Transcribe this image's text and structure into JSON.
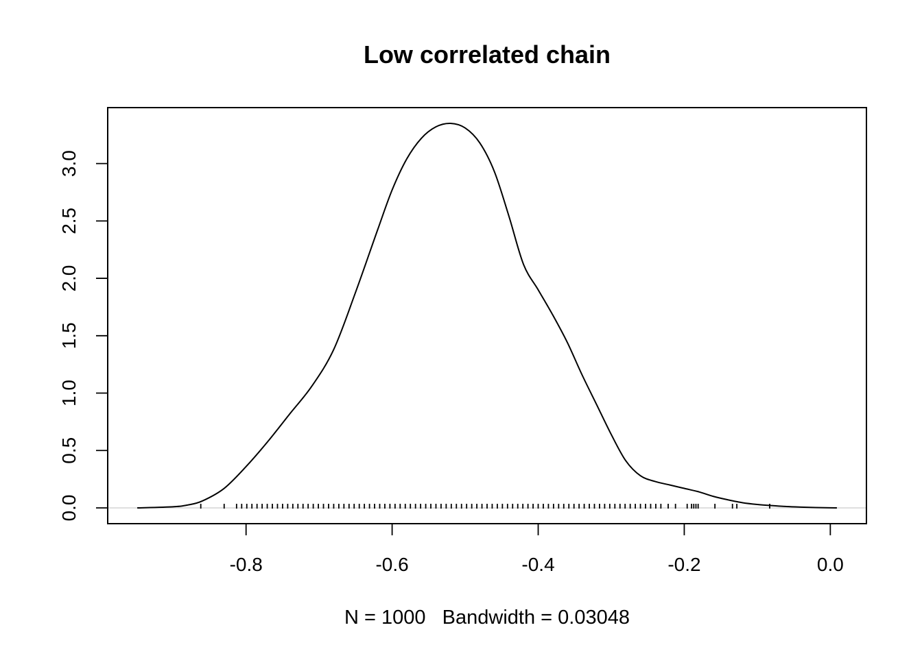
{
  "chart_data": {
    "type": "line",
    "title": "Low correlated chain",
    "xlabel": "N = 1000   Bandwidth = 0.03048",
    "ylabel": "",
    "xlim": [
      -0.95,
      0.01
    ],
    "ylim": [
      0,
      3.35
    ],
    "grid": false,
    "x_ticks": [
      {
        "value": -0.8,
        "label": "-0.8"
      },
      {
        "value": -0.6,
        "label": "-0.6"
      },
      {
        "value": -0.4,
        "label": "-0.4"
      },
      {
        "value": -0.2,
        "label": "-0.2"
      },
      {
        "value": 0.0,
        "label": "0.0"
      }
    ],
    "y_ticks": [
      {
        "value": 0.0,
        "label": "0.0"
      },
      {
        "value": 0.5,
        "label": "0.5"
      },
      {
        "value": 1.0,
        "label": "1.0"
      },
      {
        "value": 1.5,
        "label": "1.5"
      },
      {
        "value": 2.0,
        "label": "2.0"
      },
      {
        "value": 2.5,
        "label": "2.5"
      },
      {
        "value": 3.0,
        "label": "3.0"
      }
    ],
    "series": [
      {
        "x": [
          -0.949,
          -0.9,
          -0.88,
          -0.86,
          -0.83,
          -0.8,
          -0.77,
          -0.74,
          -0.71,
          -0.68,
          -0.65,
          -0.62,
          -0.6,
          -0.58,
          -0.56,
          -0.54,
          -0.52,
          -0.5,
          -0.48,
          -0.46,
          -0.44,
          -0.42,
          -0.4,
          -0.38,
          -0.36,
          -0.34,
          -0.32,
          -0.3,
          -0.28,
          -0.26,
          -0.24,
          -0.22,
          -0.2,
          -0.18,
          -0.16,
          -0.14,
          -0.12,
          -0.1,
          -0.08,
          -0.06,
          -0.04,
          -0.02,
          0.0,
          0.009
        ],
        "y": [
          0.0,
          0.01,
          0.025,
          0.06,
          0.17,
          0.36,
          0.58,
          0.82,
          1.06,
          1.38,
          1.88,
          2.42,
          2.77,
          3.04,
          3.22,
          3.32,
          3.35,
          3.31,
          3.18,
          2.93,
          2.54,
          2.12,
          1.9,
          1.68,
          1.44,
          1.16,
          0.9,
          0.64,
          0.41,
          0.28,
          0.23,
          0.2,
          0.17,
          0.14,
          0.1,
          0.07,
          0.045,
          0.03,
          0.02,
          0.012,
          0.007,
          0.003,
          0.001,
          0.0
        ]
      }
    ],
    "rug": [
      -0.862,
      -0.83,
      -0.813,
      -0.806,
      -0.799,
      -0.792,
      -0.785,
      -0.778,
      -0.771,
      -0.764,
      -0.757,
      -0.75,
      -0.743,
      -0.736,
      -0.729,
      -0.722,
      -0.715,
      -0.708,
      -0.701,
      -0.694,
      -0.687,
      -0.68,
      -0.673,
      -0.666,
      -0.659,
      -0.652,
      -0.645,
      -0.638,
      -0.631,
      -0.624,
      -0.617,
      -0.61,
      -0.603,
      -0.596,
      -0.589,
      -0.582,
      -0.575,
      -0.568,
      -0.561,
      -0.554,
      -0.547,
      -0.54,
      -0.533,
      -0.526,
      -0.519,
      -0.512,
      -0.505,
      -0.498,
      -0.491,
      -0.484,
      -0.477,
      -0.47,
      -0.463,
      -0.456,
      -0.449,
      -0.442,
      -0.435,
      -0.428,
      -0.421,
      -0.414,
      -0.407,
      -0.4,
      -0.393,
      -0.386,
      -0.379,
      -0.372,
      -0.365,
      -0.358,
      -0.351,
      -0.344,
      -0.337,
      -0.33,
      -0.323,
      -0.316,
      -0.309,
      -0.302,
      -0.295,
      -0.288,
      -0.281,
      -0.274,
      -0.267,
      -0.26,
      -0.253,
      -0.246,
      -0.239,
      -0.232,
      -0.222,
      -0.212,
      -0.196,
      -0.19,
      -0.187,
      -0.184,
      -0.181,
      -0.158,
      -0.134,
      -0.128,
      -0.083
    ]
  }
}
